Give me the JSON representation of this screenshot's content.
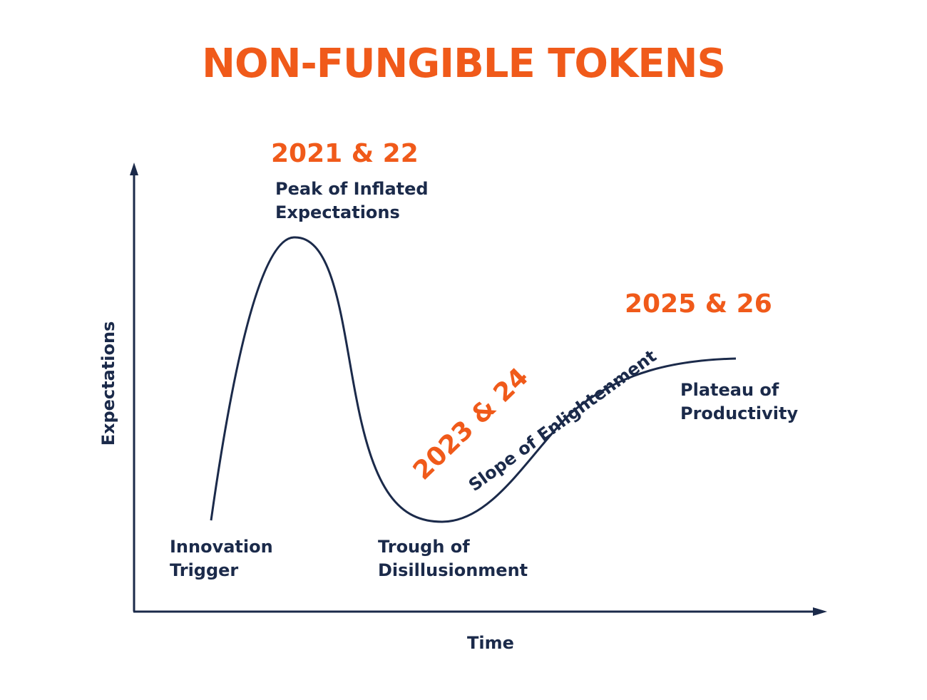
{
  "title": "NON-FUNGIBLE TOKENS",
  "axes": {
    "x_label": "Time",
    "y_label": "Expectations"
  },
  "phases": {
    "innovation_trigger": [
      "Innovation",
      "Trigger"
    ],
    "peak": [
      "Peak of Inflated",
      "Expectations"
    ],
    "trough": [
      "Trough of",
      "Disillusionment"
    ],
    "slope": "Slope of Enlightenment",
    "plateau": [
      "Plateau of",
      "Productivity"
    ]
  },
  "years": {
    "peak": "2021 & 22",
    "slope": "2023 & 24",
    "plateau": "2025 & 26"
  },
  "colors": {
    "accent": "#f05a1a",
    "ink": "#1b2a4a"
  }
}
